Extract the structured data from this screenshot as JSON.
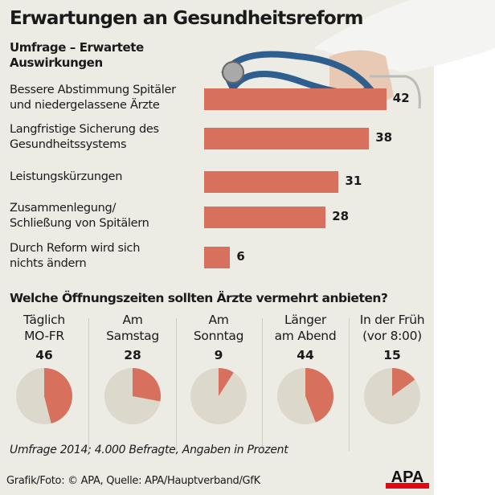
{
  "title": "Erwartungen an Gesundheitsreform",
  "subtitle_lines": [
    "Umfrage – Erwartete",
    "Auswirkungen"
  ],
  "question2": "Welche Öffnungszeiten sollten Ärzte vermehrt anbieten?",
  "note": "Umfrage 2014; 4.000 Befragte, Angaben in Prozent",
  "credit": "Grafik/Foto: © APA, Quelle: APA/Hauptverband/GfK",
  "logo": "APA",
  "colors": {
    "accent": "#d7705c",
    "pie_rest": "#dcd8cc",
    "background": "#ecebe4",
    "logo_red": "#e30613"
  },
  "chart_data": [
    {
      "type": "bar",
      "orientation": "horizontal",
      "title": "Umfrage – Erwartete Auswirkungen",
      "categories": [
        [
          "Bessere Abstimmung Spitäler",
          "und niedergelassene Ärzte"
        ],
        [
          "Langfristige Sicherung des",
          "Gesundheitssystems"
        ],
        [
          "Leistungskürzungen"
        ],
        [
          "Zusammenlegung/",
          "Schließung von Spitälern"
        ],
        [
          "Durch Reform wird sich",
          "nichts ändern"
        ]
      ],
      "values": [
        42,
        38,
        31,
        28,
        6
      ],
      "unit": "Prozent"
    },
    {
      "type": "pie",
      "title": "Welche Öffnungszeiten sollten Ärzte vermehrt anbieten?",
      "categories": [
        [
          "Täglich",
          "MO-FR"
        ],
        [
          "Am",
          "Samstag"
        ],
        [
          "Am",
          "Sonntag"
        ],
        [
          "Länger",
          "am Abend"
        ],
        [
          "In der Früh",
          "(vor 8:00)"
        ]
      ],
      "values": [
        46,
        28,
        9,
        44,
        15
      ],
      "unit": "Prozent"
    }
  ]
}
